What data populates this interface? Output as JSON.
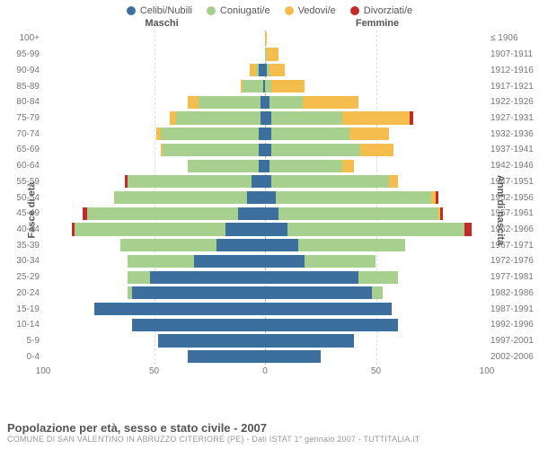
{
  "legend": [
    {
      "label": "Celibi/Nubili",
      "color": "#3d6f9e"
    },
    {
      "label": "Coniugati/e",
      "color": "#a7cf8e"
    },
    {
      "label": "Vedovi/e",
      "color": "#f5bd4e"
    },
    {
      "label": "Divorziati/e",
      "color": "#c32b2b"
    }
  ],
  "headers": {
    "m": "Maschi",
    "f": "Femmine"
  },
  "axis_titles": {
    "left": "Fasce di età",
    "right": "Anni di nascita"
  },
  "colors": {
    "grid": "#dddddd",
    "center": "#aaaaaa",
    "bg": "#ffffff"
  },
  "x_axis": {
    "max": 100,
    "ticks": [
      100,
      50,
      0,
      50,
      100
    ]
  },
  "title": "Popolazione per età, sesso e stato civile - 2007",
  "subtitle": "COMUNE DI SAN VALENTINO IN ABRUZZO CITERIORE (PE) - Dati ISTAT 1° gennaio 2007 - TUTTITALIA.IT",
  "rows": [
    {
      "age": "100+",
      "birth": "≤ 1906",
      "m": [
        0,
        0,
        0,
        0
      ],
      "f": [
        0,
        0,
        1,
        0
      ]
    },
    {
      "age": "95-99",
      "birth": "1907-1911",
      "m": [
        0,
        0,
        0,
        0
      ],
      "f": [
        0,
        1,
        5,
        0
      ]
    },
    {
      "age": "90-94",
      "birth": "1912-1916",
      "m": [
        3,
        1,
        3,
        0
      ],
      "f": [
        1,
        1,
        7,
        0
      ]
    },
    {
      "age": "85-89",
      "birth": "1917-1921",
      "m": [
        1,
        9,
        1,
        0
      ],
      "f": [
        0,
        3,
        15,
        0
      ]
    },
    {
      "age": "80-84",
      "birth": "1922-1926",
      "m": [
        2,
        28,
        5,
        0
      ],
      "f": [
        2,
        15,
        25,
        0
      ]
    },
    {
      "age": "75-79",
      "birth": "1927-1931",
      "m": [
        2,
        38,
        3,
        0
      ],
      "f": [
        3,
        32,
        30,
        2
      ]
    },
    {
      "age": "70-74",
      "birth": "1932-1936",
      "m": [
        3,
        44,
        2,
        0
      ],
      "f": [
        3,
        35,
        18,
        0
      ]
    },
    {
      "age": "65-69",
      "birth": "1937-1941",
      "m": [
        3,
        43,
        1,
        0
      ],
      "f": [
        3,
        40,
        15,
        0
      ]
    },
    {
      "age": "60-64",
      "birth": "1942-1946",
      "m": [
        3,
        32,
        0,
        0
      ],
      "f": [
        2,
        33,
        5,
        0
      ]
    },
    {
      "age": "55-59",
      "birth": "1947-1951",
      "m": [
        6,
        56,
        0,
        1
      ],
      "f": [
        3,
        53,
        4,
        0
      ]
    },
    {
      "age": "50-54",
      "birth": "1952-1956",
      "m": [
        8,
        60,
        0,
        0
      ],
      "f": [
        5,
        70,
        2,
        1
      ]
    },
    {
      "age": "45-49",
      "birth": "1957-1961",
      "m": [
        12,
        68,
        0,
        2
      ],
      "f": [
        6,
        72,
        1,
        1
      ]
    },
    {
      "age": "40-44",
      "birth": "1962-1966",
      "m": [
        18,
        68,
        0,
        1
      ],
      "f": [
        10,
        80,
        0,
        3
      ]
    },
    {
      "age": "35-39",
      "birth": "1967-1971",
      "m": [
        22,
        43,
        0,
        0
      ],
      "f": [
        15,
        48,
        0,
        0
      ]
    },
    {
      "age": "30-34",
      "birth": "1972-1976",
      "m": [
        32,
        30,
        0,
        0
      ],
      "f": [
        18,
        32,
        0,
        0
      ]
    },
    {
      "age": "25-29",
      "birth": "1977-1981",
      "m": [
        52,
        10,
        0,
        0
      ],
      "f": [
        42,
        18,
        0,
        0
      ]
    },
    {
      "age": "20-24",
      "birth": "1982-1986",
      "m": [
        60,
        2,
        0,
        0
      ],
      "f": [
        48,
        5,
        0,
        0
      ]
    },
    {
      "age": "15-19",
      "birth": "1987-1991",
      "m": [
        77,
        0,
        0,
        0
      ],
      "f": [
        57,
        0,
        0,
        0
      ]
    },
    {
      "age": "10-14",
      "birth": "1992-1996",
      "m": [
        60,
        0,
        0,
        0
      ],
      "f": [
        60,
        0,
        0,
        0
      ]
    },
    {
      "age": "5-9",
      "birth": "1997-2001",
      "m": [
        48,
        0,
        0,
        0
      ],
      "f": [
        40,
        0,
        0,
        0
      ]
    },
    {
      "age": "0-4",
      "birth": "2002-2006",
      "m": [
        35,
        0,
        0,
        0
      ],
      "f": [
        25,
        0,
        0,
        0
      ]
    }
  ]
}
